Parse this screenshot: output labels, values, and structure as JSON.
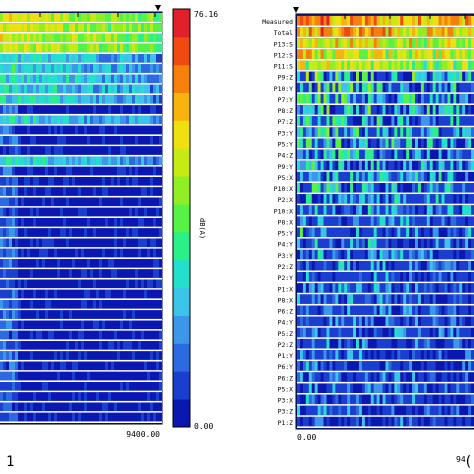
{
  "figure": {
    "left_caption": "1",
    "right_caption": "("
  },
  "chart_data": [
    {
      "type": "heatmap",
      "panel": "left",
      "x_tick_labels": [
        "9400.00"
      ],
      "y_tick_labels": [],
      "row_count": 40,
      "colorbar": {
        "max_label": "76.16",
        "min_label": "0.00",
        "unit_label": "dB(A)",
        "range": [
          0.0,
          76.16
        ],
        "colors": [
          "#0a17b0",
          "#1a3fd0",
          "#2c6ae0",
          "#3c96ea",
          "#39c4e8",
          "#23e0cc",
          "#2bf08a",
          "#57f246",
          "#92ee24",
          "#c6ea14",
          "#f0e010",
          "#f7b40e",
          "#f5800c",
          "#ee4a12",
          "#e0202a"
        ]
      },
      "rows_high": [
        0,
        1,
        2,
        3
      ],
      "rows_medium": [
        4,
        5,
        6,
        7,
        8,
        10,
        14
      ],
      "rows_low_count": 29
    },
    {
      "type": "heatmap",
      "panel": "right",
      "x_tick_labels": [
        "0.00",
        "94"
      ],
      "y_tick_labels": [
        "Measured",
        "Total",
        "P13:S",
        "P12:S",
        "P11:S",
        "P9:Z",
        "P10:Y",
        "P7:Y",
        "P8:Z",
        "P7:Z",
        "P3:Y",
        "P5:Y",
        "P4:Z",
        "P9:Y",
        "P5:X",
        "P10:X",
        "P2:X",
        "P10:X",
        "P8:X",
        "P5:Y",
        "P4:Y",
        "P3:Y",
        "P2:Z",
        "P2:Y",
        "P1:X",
        "P8:X",
        "P6:Z",
        "P4:Y",
        "P5:Z",
        "P2:Z",
        "P1:Y",
        "P6:Y",
        "P6:Z",
        "P5:X",
        "P3:X",
        "P3:Z",
        "P1:Z"
      ],
      "row_intensity": [
        0.78,
        0.74,
        0.66,
        0.62,
        0.58,
        0.42,
        0.4,
        0.38,
        0.36,
        0.35,
        0.34,
        0.32,
        0.3,
        0.3,
        0.28,
        0.33,
        0.28,
        0.3,
        0.27,
        0.25,
        0.23,
        0.22,
        0.21,
        0.21,
        0.2,
        0.19,
        0.19,
        0.18,
        0.18,
        0.17,
        0.17,
        0.16,
        0.16,
        0.16,
        0.15,
        0.15,
        0.14
      ]
    }
  ]
}
